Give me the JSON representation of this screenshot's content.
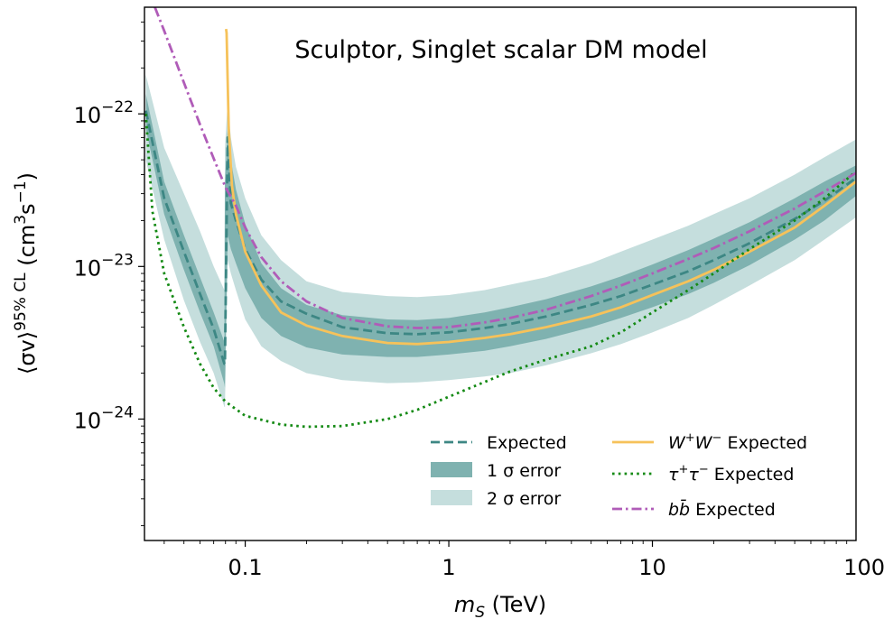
{
  "chart_data": {
    "type": "line",
    "title": "",
    "annotation": "Sculptor, Singlet scalar DM model",
    "xlabel_sym": "m",
    "xlabel_sub": "S",
    "xlabel_unit": " (TeV)",
    "ylabel_main": "⟨σv⟩",
    "ylabel_sup": "95% CL",
    "ylabel_unit_open": " (cm",
    "ylabel_unit_exp1": "3",
    "ylabel_unit_mid": "s",
    "ylabel_unit_exp2": "−1",
    "ylabel_unit_close": ")",
    "x_scale": "log",
    "y_scale": "log",
    "xlim": [
      0.032,
      100
    ],
    "ylim": [
      1.6e-25,
      5e-22
    ],
    "x_ticks": [
      {
        "value": 0.1,
        "label": "0.1"
      },
      {
        "value": 1,
        "label": "1"
      },
      {
        "value": 10,
        "label": "10"
      },
      {
        "value": 100,
        "label": "100"
      }
    ],
    "y_ticks": [
      {
        "value": 1e-24,
        "base": "10",
        "exp": "−24"
      },
      {
        "value": 1e-23,
        "base": "10",
        "exp": "−23"
      },
      {
        "value": 1e-22,
        "base": "10",
        "exp": "−22"
      }
    ],
    "legend_position": "lower-right",
    "colors": {
      "expected": "#3d8784",
      "band1": "#7fb2b0",
      "band2": "#c5dedd",
      "ww": "#f6c25a",
      "tautau": "#148a14",
      "bb": "#b05cb8"
    },
    "legend": [
      {
        "key": "expected",
        "label": "Expected",
        "kind": "dashed"
      },
      {
        "key": "band1",
        "label": "1 σ error",
        "kind": "patch"
      },
      {
        "key": "band2",
        "label": "2 σ error",
        "kind": "patch"
      },
      {
        "key": "ww",
        "label_parts": [
          "W",
          "+",
          "W",
          "−",
          " Expected"
        ],
        "kind": "solid"
      },
      {
        "key": "tautau",
        "label_parts": [
          "τ",
          "+",
          "τ",
          "−",
          " Expected"
        ],
        "kind": "dotted"
      },
      {
        "key": "bb",
        "label": "bb̄ Expected",
        "kind": "dashdot"
      }
    ],
    "series": [
      {
        "key": "band2",
        "kind": "band",
        "x": [
          0.0325,
          0.04,
          0.05,
          0.06,
          0.07,
          0.079,
          0.0795,
          0.082,
          0.085,
          0.09,
          0.1,
          0.12,
          0.15,
          0.2,
          0.3,
          0.5,
          0.7,
          1,
          1.5,
          2,
          3,
          5,
          7,
          10,
          15,
          20,
          30,
          50,
          70,
          100
        ],
        "upper": [
          1.8e-22,
          6e-23,
          3e-23,
          1.7e-23,
          1e-23,
          7e-24,
          6e-23,
          1.2e-22,
          7e-23,
          4.5e-23,
          2.8e-23,
          1.6e-23,
          1.1e-23,
          8e-24,
          6.8e-24,
          6.4e-24,
          6.3e-24,
          6.5e-24,
          7e-24,
          7.6e-24,
          8.5e-24,
          1.05e-23,
          1.25e-23,
          1.5e-23,
          1.85e-23,
          2.2e-23,
          2.8e-23,
          4e-23,
          5.2e-23,
          6.8e-23
        ],
        "lower": [
          5e-23,
          1.5e-23,
          6e-24,
          3.2e-24,
          2e-24,
          1.2e-24,
          1.2e-24,
          1.1e-23,
          9e-24,
          7e-24,
          4.5e-24,
          3e-24,
          2.4e-24,
          2e-24,
          1.8e-24,
          1.72e-24,
          1.74e-24,
          1.8e-24,
          1.9e-24,
          2e-24,
          2.25e-24,
          2.7e-24,
          3.1e-24,
          3.7e-24,
          4.6e-24,
          5.6e-24,
          7.5e-24,
          1.1e-23,
          1.5e-23,
          2.1e-23
        ]
      },
      {
        "key": "band1",
        "kind": "band",
        "x": [
          0.0325,
          0.04,
          0.05,
          0.06,
          0.07,
          0.079,
          0.0795,
          0.082,
          0.085,
          0.09,
          0.1,
          0.12,
          0.15,
          0.2,
          0.3,
          0.5,
          0.7,
          1,
          1.5,
          2,
          3,
          5,
          7,
          10,
          15,
          20,
          30,
          50,
          70,
          100
        ],
        "upper": [
          1.35e-22,
          3.6e-23,
          1.6e-23,
          8.5e-24,
          5e-24,
          3.2e-24,
          3.5e-23,
          8e-23,
          5e-23,
          3.2e-23,
          1.9e-23,
          1.05e-23,
          7.2e-24,
          5.6e-24,
          4.8e-24,
          4.5e-24,
          4.45e-24,
          4.6e-24,
          5e-24,
          5.4e-24,
          6.1e-24,
          7.4e-24,
          8.6e-24,
          1.03e-23,
          1.28e-23,
          1.52e-23,
          1.95e-23,
          2.8e-23,
          3.6e-23,
          4.6e-23
        ],
        "lower": [
          8e-23,
          2.2e-23,
          9.5e-24,
          5e-24,
          3e-24,
          1.7e-24,
          1.6e-24,
          1.6e-23,
          1.3e-23,
          1.05e-23,
          7.2e-24,
          4.6e-24,
          3.5e-24,
          2.95e-24,
          2.65e-24,
          2.55e-24,
          2.55e-24,
          2.65e-24,
          2.8e-24,
          3e-24,
          3.35e-24,
          4e-24,
          4.6e-24,
          5.4e-24,
          6.6e-24,
          7.8e-24,
          1.02e-23,
          1.5e-23,
          2e-23,
          2.9e-23
        ]
      },
      {
        "key": "expected",
        "kind": "dashed",
        "x": [
          0.0325,
          0.04,
          0.05,
          0.06,
          0.07,
          0.079,
          0.0795,
          0.082,
          0.085,
          0.09,
          0.1,
          0.12,
          0.15,
          0.2,
          0.3,
          0.5,
          0.7,
          1,
          1.5,
          2,
          3,
          5,
          7,
          10,
          15,
          20,
          30,
          50,
          70,
          100
        ],
        "y": [
          1.05e-22,
          2.8e-23,
          1.25e-23,
          6.6e-24,
          3.9e-24,
          2.3e-24,
          2.3e-24,
          7e-23,
          2.6e-23,
          2e-23,
          1.3e-23,
          8.2e-24,
          5.9e-24,
          4.9e-24,
          4e-24,
          3.65e-24,
          3.6e-24,
          3.7e-24,
          3.95e-24,
          4.2e-24,
          4.7e-24,
          5.6e-24,
          6.4e-24,
          7.6e-24,
          9.3e-24,
          1.1e-23,
          1.42e-23,
          2.05e-23,
          2.7e-23,
          3.8e-23
        ]
      },
      {
        "key": "ww",
        "kind": "solid",
        "x": [
          0.0805,
          0.081,
          0.083,
          0.086,
          0.09,
          0.1,
          0.12,
          0.15,
          0.2,
          0.3,
          0.5,
          0.7,
          1,
          1.5,
          2,
          3,
          5,
          7,
          10,
          15,
          20,
          30,
          50,
          70,
          100
        ],
        "y": [
          3.6e-22,
          3.4e-22,
          8e-23,
          3.4e-23,
          2.2e-23,
          1.25e-23,
          7.5e-24,
          5e-24,
          4.1e-24,
          3.5e-24,
          3.15e-24,
          3.1e-24,
          3.2e-24,
          3.4e-24,
          3.6e-24,
          4e-24,
          4.7e-24,
          5.4e-24,
          6.5e-24,
          8e-24,
          9.5e-24,
          1.25e-23,
          1.8e-23,
          2.5e-23,
          3.6e-23
        ]
      },
      {
        "key": "tautau",
        "kind": "dotted",
        "x": [
          0.0325,
          0.035,
          0.04,
          0.05,
          0.06,
          0.07,
          0.08,
          0.1,
          0.15,
          0.2,
          0.3,
          0.5,
          0.7,
          1,
          1.5,
          2,
          3,
          5,
          7,
          10,
          15,
          20,
          30,
          50,
          70,
          100
        ],
        "y": [
          1e-22,
          2.3e-23,
          9e-24,
          4e-24,
          2.3e-24,
          1.6e-24,
          1.3e-24,
          1.05e-24,
          9.2e-25,
          8.9e-25,
          9e-25,
          1e-24,
          1.15e-24,
          1.4e-24,
          1.75e-24,
          2.05e-24,
          2.45e-24,
          3e-24,
          3.7e-24,
          5e-24,
          7e-24,
          9e-24,
          1.3e-23,
          2e-23,
          2.8e-23,
          4.2e-23
        ]
      },
      {
        "key": "bb",
        "kind": "dashdot",
        "x": [
          0.036,
          0.04,
          0.05,
          0.06,
          0.07,
          0.08,
          0.09,
          0.1,
          0.12,
          0.15,
          0.2,
          0.3,
          0.5,
          0.7,
          1,
          1.5,
          2,
          3,
          5,
          7,
          10,
          15,
          20,
          30,
          50,
          70,
          100
        ],
        "y": [
          5e-22,
          3.5e-22,
          1.6e-22,
          8.5e-23,
          5.1e-23,
          3.3e-23,
          2.5e-23,
          1.8e-23,
          1.15e-23,
          8e-24,
          5.9e-24,
          4.6e-24,
          4.05e-24,
          3.95e-24,
          4e-24,
          4.3e-24,
          4.6e-24,
          5.2e-24,
          6.4e-24,
          7.5e-24,
          9e-24,
          1.12e-23,
          1.32e-23,
          1.7e-23,
          2.4e-23,
          3.1e-23,
          4.1e-23
        ]
      }
    ]
  }
}
